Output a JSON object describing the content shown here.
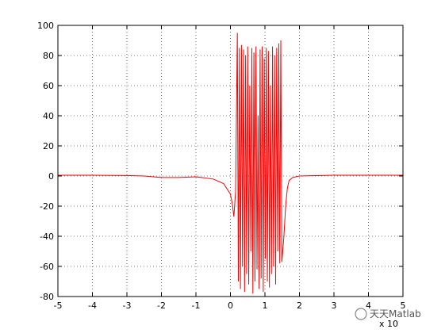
{
  "chart_data": {
    "type": "line",
    "x": [
      -5,
      -4,
      -3,
      -2.5,
      -2,
      -1.5,
      -1,
      -0.5,
      -0.2,
      0,
      0.05,
      0.1,
      0.15,
      0.2,
      0.23,
      0.26,
      0.29,
      0.32,
      0.35,
      0.38,
      0.41,
      0.44,
      0.47,
      0.5,
      0.53,
      0.56,
      0.59,
      0.62,
      0.65,
      0.68,
      0.71,
      0.74,
      0.77,
      0.8,
      0.83,
      0.86,
      0.89,
      0.92,
      0.95,
      0.98,
      1.01,
      1.04,
      1.07,
      1.1,
      1.13,
      1.16,
      1.19,
      1.22,
      1.25,
      1.28,
      1.31,
      1.34,
      1.37,
      1.4,
      1.43,
      1.46,
      1.49,
      1.55,
      1.6,
      1.65,
      1.7,
      1.8,
      2,
      3,
      4,
      5
    ],
    "values": [
      0.5,
      0.5,
      0.3,
      0,
      -1,
      -1,
      -0.5,
      -2,
      -5,
      -12,
      -18,
      -27,
      -10,
      95,
      -70,
      85,
      -75,
      87,
      -60,
      84,
      -77,
      80,
      -65,
      86,
      -72,
      60,
      -50,
      85,
      -78,
      82,
      -70,
      86,
      -62,
      40,
      -75,
      84,
      -68,
      86,
      -77,
      78,
      -55,
      85,
      -70,
      83,
      -74,
      60,
      -65,
      86,
      -60,
      80,
      -72,
      85,
      -50,
      88,
      -58,
      90,
      -57,
      -40,
      -20,
      -8,
      -3,
      -1,
      0,
      0.5,
      0.5,
      0.5
    ],
    "color": "#ff0000",
    "xlim": [
      -5,
      5
    ],
    "xticks": [
      -5,
      -4,
      -3,
      -2,
      -1,
      0,
      1,
      2,
      3,
      4,
      5
    ],
    "ylim": [
      -80,
      100
    ],
    "yticks": [
      -80,
      -60,
      -40,
      -20,
      0,
      20,
      40,
      60,
      80,
      100
    ],
    "grid": true,
    "axis_multiplier": "x 10",
    "watermark": "天天Matlab"
  }
}
